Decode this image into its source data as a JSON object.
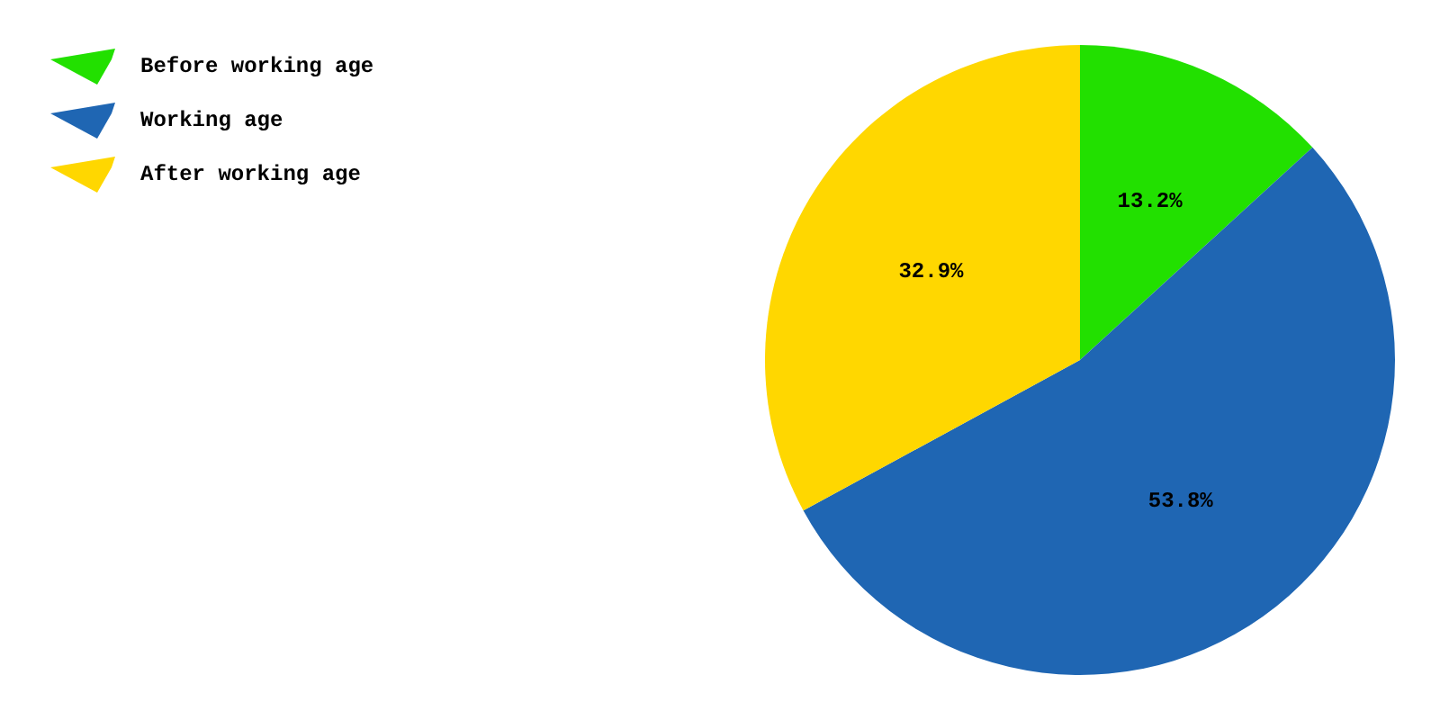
{
  "chart_data": {
    "type": "pie",
    "categories": [
      "Before working age",
      "Working age",
      "After working age"
    ],
    "values": [
      13.2,
      53.8,
      32.9
    ],
    "colors": [
      "#22e000",
      "#1f66b3",
      "#ffd700"
    ],
    "value_labels": [
      "13.2%",
      "53.8%",
      "32.9%"
    ],
    "legend": "top left"
  }
}
